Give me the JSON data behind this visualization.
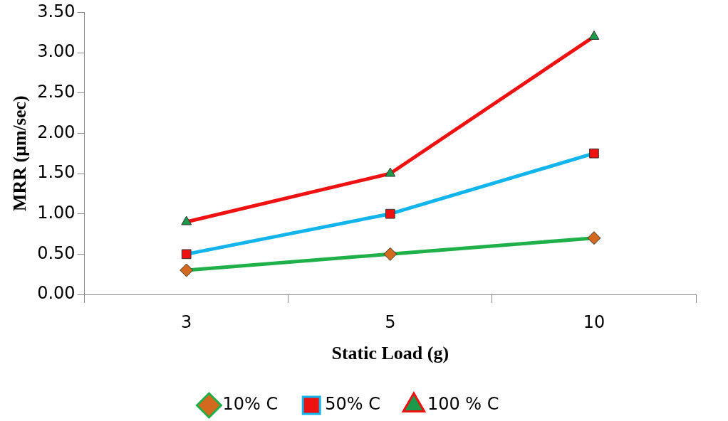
{
  "chart_data": {
    "type": "line",
    "xlabel": "Static Load (g)",
    "ylabel": "MRR (μm/sec)",
    "categories": [
      "3",
      "5",
      "10"
    ],
    "ylim": [
      0,
      3.5
    ],
    "yticks": [
      {
        "value": 0,
        "label": "0.00"
      },
      {
        "value": 0.5,
        "label": "0.50"
      },
      {
        "value": 1,
        "label": "1.00"
      },
      {
        "value": 1.5,
        "label": "1.50"
      },
      {
        "value": 2,
        "label": "2.00"
      },
      {
        "value": 2.5,
        "label": "2.50"
      },
      {
        "value": 3,
        "label": "3.00"
      },
      {
        "value": 3.5,
        "label": "3.50"
      }
    ],
    "grid": false,
    "legend": "bottom",
    "line_style": "solid",
    "series": [
      {
        "name": "10% C",
        "color": "#1fb04a",
        "marker": "diamond",
        "colors": [
          "#d2691e",
          "#d2691e",
          "#d2691e"
        ],
        "values": [
          0.3,
          0.5,
          0.7
        ]
      },
      {
        "name": "50% C",
        "color": "#12b4ec",
        "marker": "square",
        "colors": [
          "#ee1111",
          "#ee1111",
          "#ee1111"
        ],
        "values": [
          0.5,
          1.0,
          1.75
        ]
      },
      {
        "name": "100 % C",
        "color": "#ee1111",
        "marker": "triangle",
        "colors": [
          "#1a9a4a",
          "#1a9a4a",
          "#1a9a4a"
        ],
        "values": [
          0.9,
          1.5,
          3.2
        ]
      }
    ]
  }
}
